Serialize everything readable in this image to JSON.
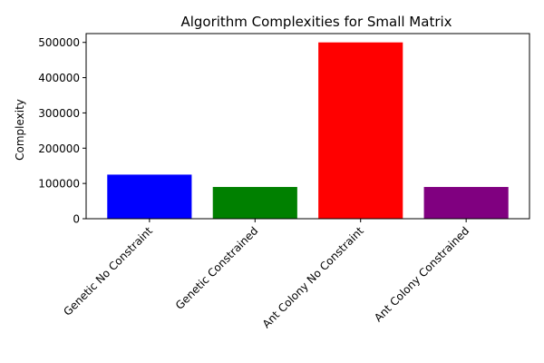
{
  "chart_data": {
    "type": "bar",
    "title": "Algorithm Complexities for Small Matrix",
    "xlabel": "",
    "ylabel": "Complexity",
    "categories": [
      "Genetic No Constraint",
      "Genetic Constrained",
      "Ant Colony No Constraint",
      "Ant Colony Constrained"
    ],
    "values": [
      125000,
      90000,
      500000,
      90000
    ],
    "colors": [
      "#0000ff",
      "#008000",
      "#ff0000",
      "#800080"
    ],
    "ylim": [
      0,
      525000
    ],
    "yticks": [
      0,
      100000,
      200000,
      300000,
      400000,
      500000
    ],
    "ytick_labels": [
      "0",
      "100000",
      "200000",
      "300000",
      "400000",
      "500000"
    ],
    "grid": false,
    "xtick_rotation": 45
  }
}
